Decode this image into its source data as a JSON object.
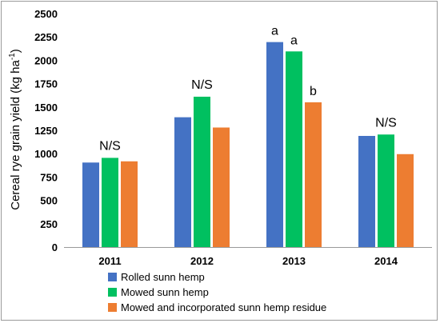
{
  "chart_data": {
    "type": "bar",
    "categories": [
      "2011",
      "2012",
      "2013",
      "2014"
    ],
    "series": [
      {
        "name": "Rolled sunn hemp",
        "color": "#4472C4",
        "values": [
          905,
          1390,
          2195,
          1190
        ]
      },
      {
        "name": "Mowed sunn hemp",
        "color": "#00C060",
        "values": [
          955,
          1610,
          2095,
          1205
        ]
      },
      {
        "name": "Mowed and incorporated sunn hemp residue",
        "color": "#ED7D31",
        "values": [
          918,
          1280,
          1550,
          995
        ]
      }
    ],
    "annotations": [
      {
        "category": "2011",
        "label": "N/S"
      },
      {
        "category": "2012",
        "label": "N/S"
      },
      {
        "category": "2013",
        "series_index": 0,
        "label": "a"
      },
      {
        "category": "2013",
        "series_index": 1,
        "label": "a"
      },
      {
        "category": "2013",
        "series_index": 2,
        "label": "b"
      },
      {
        "category": "2014",
        "label": "N/S"
      }
    ],
    "ylabel_main": "Cereal rye grain yield (kg ha",
    "ylabel_sup": "-1",
    "ylabel_close": ")",
    "xlabel": "",
    "ylim": [
      0,
      2500
    ],
    "yticks": [
      0,
      250,
      500,
      750,
      1000,
      1250,
      1500,
      1750,
      2000,
      2250,
      2500
    ],
    "grid": false,
    "legend_position": "bottom"
  }
}
